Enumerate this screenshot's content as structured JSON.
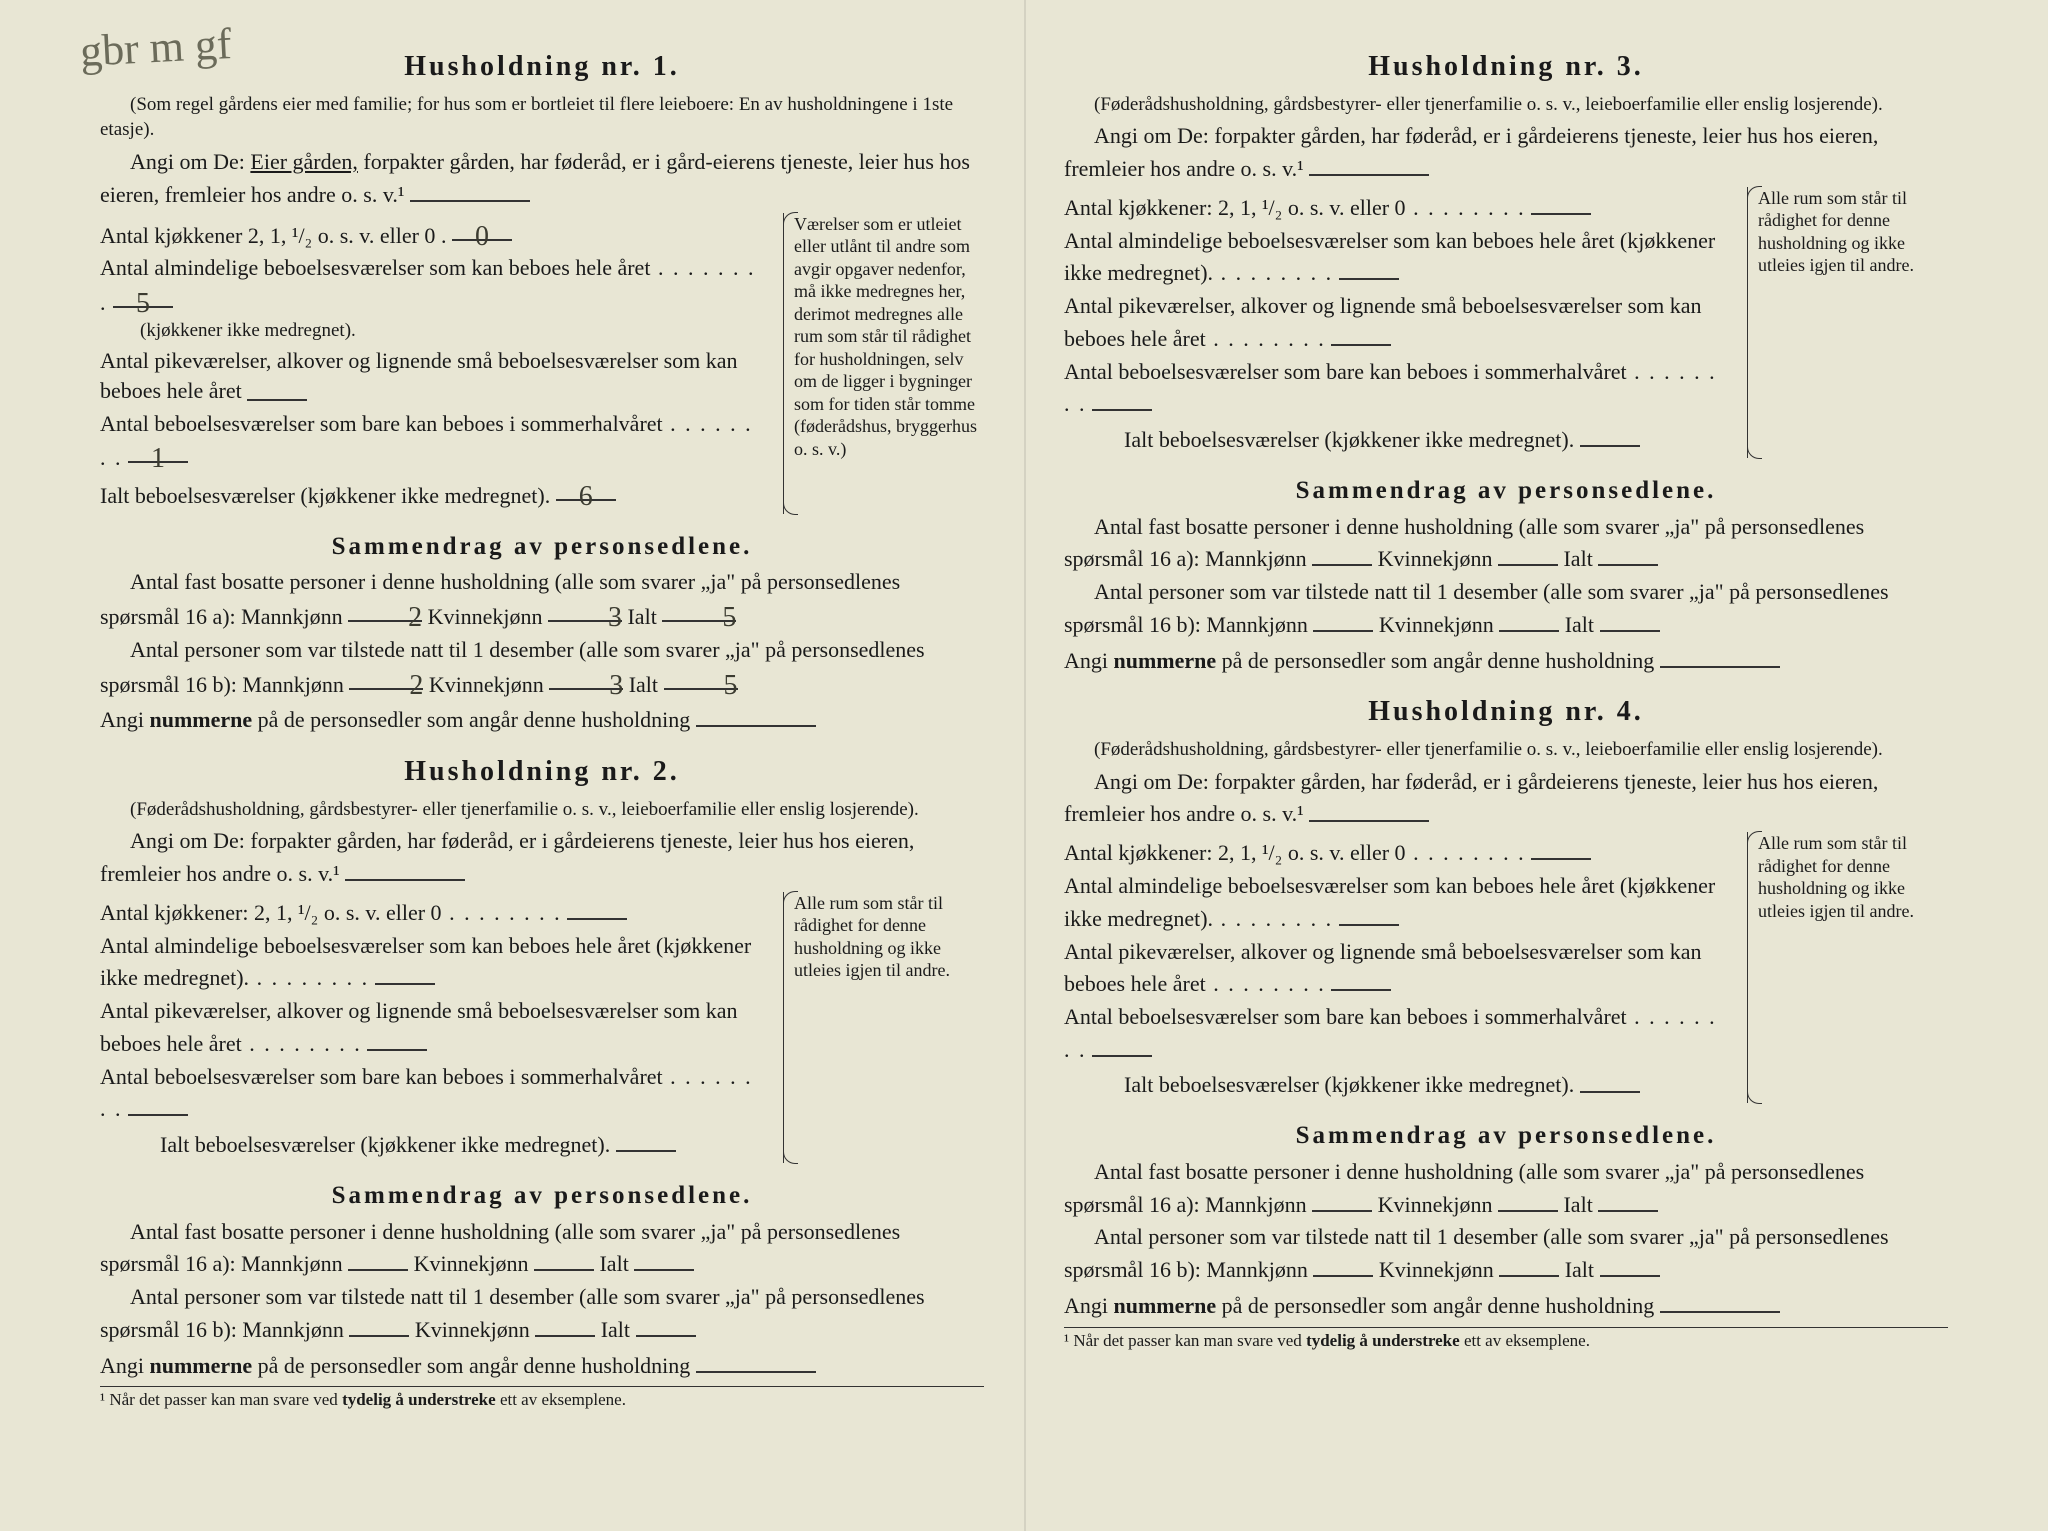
{
  "handwritten_top": "gbr m gf",
  "households": [
    {
      "title": "Husholdning nr. 1.",
      "sub": "(Som regel gårdens eier med familie; for hus som er bortleiet til flere leieboere: En av husholdningene i 1ste etasje).",
      "angi_pre": "Angi om De: ",
      "angi_underlined": "Eier gården,",
      "angi_rest": " forpakter gården, har føderåd, er i gård-eierens tjeneste, leier hus hos eieren, fremleier hos andre o. s. v.¹",
      "kitchens_label": "Antal kjøkkener 2, 1, ¹/₂ o. s. v. eller 0",
      "kitchens_value": "0",
      "rooms_label": "Antal almindelige beboelsesværelser som kan beboes hele året",
      "rooms_value": "5",
      "rooms_note": "(kjøkkener ikke medregnet).",
      "pike_label": "Antal pikeværelser, alkover og lignende små beboelsesværelser som kan beboes hele året",
      "pike_value": "",
      "sommer_label": "Antal beboelsesværelser som bare kan beboes i sommerhalvåret",
      "sommer_value": "1",
      "ialt_label": "Ialt beboelsesværelser (kjøkkener ikke medregnet).",
      "ialt_value": "6",
      "aside": "Værelser som er utleiet eller utlånt til andre som avgir opgaver nedenfor, må ikke medregnes her, derimot medregnes alle rum som står til rådighet for husholdningen, selv om de ligger i bygninger som for tiden står tomme (føderådshus, bryggerhus o. s. v.)",
      "summary_title": "Sammendrag av personsedlene.",
      "fast_pre": "Antal fast bosatte personer i denne husholdning (alle som svarer „ja\" på personsedlenes spørsmål 16 a): Mannkjønn",
      "fast_m": "2",
      "fast_k_label": "Kvinnekjønn",
      "fast_k": "3",
      "fast_ialt_label": "Ialt",
      "fast_ialt": "5",
      "tilstede_pre": "Antal personer som var tilstede natt til 1 desember (alle som svarer „ja\" på personsedlenes spørsmål 16 b): Mannkjønn",
      "tilstede_m": "2",
      "tilstede_k": "3",
      "tilstede_ialt": "5",
      "angi_nummer": "Angi nummerne på de personsedler som angår denne husholdning"
    },
    {
      "title": "Husholdning nr. 2.",
      "sub": "(Føderådshusholdning, gårdsbestyrer- eller tjenerfamilie o. s. v., leieboerfamilie eller enslig losjerende).",
      "angi_pre": "Angi om De:  forpakter gården, har føderåd, er i gårdeierens tjeneste, leier hus hos eieren, fremleier hos andre o. s. v.¹",
      "kitchens_label": "Antal kjøkkener: 2, 1, ¹/₂ o. s. v. eller 0",
      "rooms_label": "Antal almindelige beboelsesværelser som kan beboes hele året (kjøkkener ikke medregnet).",
      "pike_label": "Antal pikeværelser, alkover og lignende små beboelsesværelser som kan beboes hele året",
      "sommer_label": "Antal beboelsesværelser som bare kan beboes i sommerhalvåret",
      "ialt_label": "Ialt beboelsesværelser  (kjøkkener ikke medregnet).",
      "aside": "Alle rum som står til rådighet for denne husholdning og ikke utleies igjen til andre.",
      "summary_title": "Sammendrag av personsedlene.",
      "fast_pre": "Antal fast bosatte personer i denne husholdning (alle som svarer „ja\" på personsedlenes spørsmål 16 a): Mannkjønn",
      "fast_k_label": "Kvinnekjønn",
      "fast_ialt_label": "Ialt",
      "tilstede_pre": "Antal personer som var tilstede natt til 1 desember (alle som svarer „ja\" på personsedlenes spørsmål 16 b): Mannkjønn",
      "angi_nummer": "Angi nummerne på de personsedler som angår denne husholdning",
      "footnote": "¹ Når det passer kan man svare ved tydelig å understreke ett av eksemplene."
    },
    {
      "title": "Husholdning nr. 3.",
      "sub": "(Føderådshusholdning, gårdsbestyrer- eller tjenerfamilie o. s. v., leieboerfamilie eller enslig losjerende).",
      "angi_pre": "Angi om De:  forpakter gården, har føderåd, er i gårdeierens tjeneste, leier hus hos eieren, fremleier hos andre o. s. v.¹",
      "kitchens_label": "Antal kjøkkener: 2, 1, ¹/₂ o. s. v. eller 0",
      "rooms_label": "Antal almindelige beboelsesværelser som kan beboes hele året (kjøkkener ikke medregnet).",
      "pike_label": "Antal pikeværelser, alkover og lignende små beboelsesværelser som kan beboes hele året",
      "sommer_label": "Antal beboelsesværelser som bare kan beboes i sommerhalvåret",
      "ialt_label": "Ialt beboelsesværelser  (kjøkkener ikke medregnet).",
      "aside": "Alle rum som står til rådighet for denne husholdning og ikke utleies igjen til andre.",
      "summary_title": "Sammendrag av personsedlene.",
      "fast_pre": "Antal fast bosatte personer i denne husholdning (alle som svarer „ja\" på personsedlenes spørsmål 16 a): Mannkjønn",
      "fast_k_label": "Kvinnekjønn",
      "fast_ialt_label": "Ialt",
      "tilstede_pre": "Antal personer som var tilstede natt til 1 desember (alle som svarer „ja\" på personsedlenes spørsmål 16 b): Mannkjønn",
      "angi_nummer": "Angi nummerne på de personsedler som angår denne husholdning"
    },
    {
      "title": "Husholdning nr. 4.",
      "sub": "(Føderådshusholdning, gårdsbestyrer- eller tjenerfamilie o. s. v., leieboerfamilie eller enslig losjerende).",
      "angi_pre": "Angi om De:  forpakter gården, har føderåd, er i gårdeierens tjeneste, leier hus hos eieren, fremleier hos andre o. s. v.¹",
      "kitchens_label": "Antal kjøkkener: 2, 1, ¹/₂ o. s. v. eller 0",
      "rooms_label": "Antal almindelige beboelsesværelser som kan beboes hele året (kjøkkener ikke medregnet).",
      "pike_label": "Antal pikeværelser, alkover og lignende små beboelsesværelser som kan beboes hele året",
      "sommer_label": "Antal beboelsesværelser som bare kan beboes i sommerhalvåret",
      "ialt_label": "Ialt beboelsesværelser  (kjøkkener ikke medregnet).",
      "aside": "Alle rum som står til rådighet for denne husholdning og ikke utleies igjen til andre.",
      "summary_title": "Sammendrag av personsedlene.",
      "fast_pre": "Antal fast bosatte personer i denne husholdning (alle som svarer „ja\" på personsedlenes spørsmål 16 a): Mannkjønn",
      "fast_k_label": "Kvinnekjønn",
      "fast_ialt_label": "Ialt",
      "tilstede_pre": "Antal personer som var tilstede natt til 1 desember (alle som svarer „ja\" på personsedlenes spørsmål 16 b): Mannkjønn",
      "angi_nummer": "Angi nummerne på de personsedler som angår denne husholdning",
      "footnote": "¹ Når det passer kan man svare ved tydelig å understreke ett av eksemplene."
    }
  ],
  "colors": {
    "background": "#e8e6d4",
    "text": "#1a1a1a",
    "handwriting": "#6b6b5a"
  }
}
